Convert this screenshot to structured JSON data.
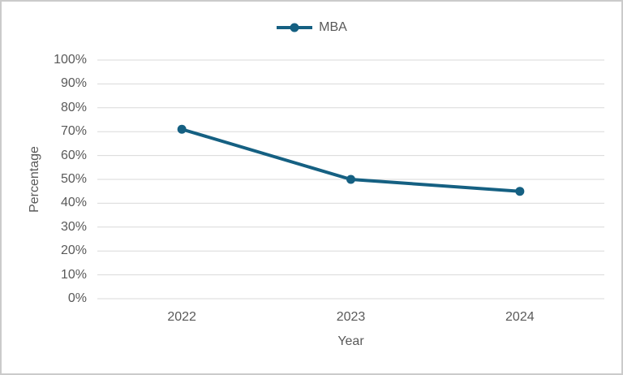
{
  "chart_data": {
    "type": "line",
    "title": "",
    "categories": [
      "2022",
      "2023",
      "2024"
    ],
    "series": [
      {
        "name": "MBA",
        "values": [
          71,
          50,
          45
        ],
        "color": "#156082"
      }
    ],
    "xlabel": "Year",
    "ylabel": "Percentage",
    "ylim": [
      0,
      100
    ],
    "ytick_step": 10,
    "ytick_labels": [
      "0%",
      "10%",
      "20%",
      "30%",
      "40%",
      "50%",
      "60%",
      "70%",
      "80%",
      "90%",
      "100%"
    ],
    "grid": "horizontal",
    "legend_position": "top-center"
  },
  "colors": {
    "series": "#156082",
    "gridline": "#D9D9D9",
    "axis_text": "#595959",
    "frame_border": "#CBCBCB",
    "background": "#FFFFFF"
  }
}
